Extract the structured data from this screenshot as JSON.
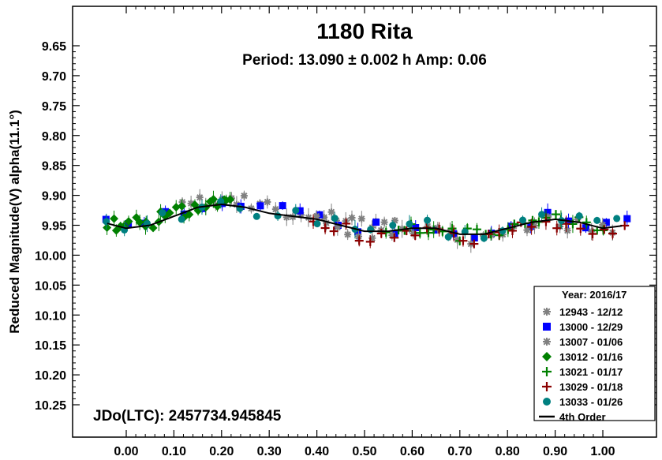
{
  "chart_data": {
    "type": "scatter",
    "title": "1180 Rita",
    "subtitle": "Period: 13.090 ± 0.002 h   Amp: 0.06",
    "ylabel": "Reduced Magnitude(V) alpha(11.1°)",
    "xlabel": "",
    "footer": "JDo(LTC): 2457734.945845",
    "xlim": [
      -0.07,
      1.08
    ],
    "ylim": [
      10.31,
      9.6
    ],
    "y_inverted": true,
    "x_ticks": [
      "0.00",
      "0.10",
      "0.20",
      "0.30",
      "0.40",
      "0.50",
      "0.60",
      "0.70",
      "0.80",
      "0.90",
      "1.00"
    ],
    "y_ticks": [
      "9.65",
      "9.70",
      "9.75",
      "9.80",
      "9.85",
      "9.90",
      "9.95",
      "10.00",
      "10.05",
      "10.10",
      "10.15",
      "10.20",
      "10.25"
    ],
    "legend_title": "Year: 2016/17",
    "legend_placement": "bottom-right",
    "series": [
      {
        "name": "12943 - 12/12",
        "marker": "asterisk",
        "color": "#808080",
        "x_range": [
          0.12,
          0.56
        ],
        "y_center": 9.925,
        "fit": false
      },
      {
        "name": "13000 - 12/29",
        "marker": "square",
        "color": "#0000ff",
        "x_range": [
          -0.04,
          1.05
        ],
        "y_center": 9.935,
        "fit": false
      },
      {
        "name": "13007 - 01/06",
        "marker": "asterisk",
        "color": "#808080",
        "x_range": [
          0.4,
          1.02
        ],
        "y_center": 9.955,
        "fit": false
      },
      {
        "name": "13012 - 01/16",
        "marker": "diamond",
        "color": "#008000",
        "x_range": [
          -0.04,
          0.22
        ],
        "y_center": 9.935,
        "fit": false
      },
      {
        "name": "13021 - 01/17",
        "marker": "plus",
        "color": "#008000",
        "x_range": [
          0.55,
          1.0
        ],
        "y_center": 9.95,
        "fit": false
      },
      {
        "name": "13029 - 01/18",
        "marker": "plus",
        "color": "#8b0000",
        "x_range": [
          0.39,
          1.05
        ],
        "y_center": 9.96,
        "fit": false
      },
      {
        "name": "13033 - 01/26",
        "marker": "circle",
        "color": "#008080",
        "x_range": [
          -0.04,
          1.03
        ],
        "y_center": 9.94,
        "fit": false
      },
      {
        "name": "4th Order",
        "marker": "line",
        "color": "#000000",
        "fit": true
      }
    ],
    "fit_curve": {
      "x": [
        0.0,
        0.05,
        0.1,
        0.15,
        0.2,
        0.25,
        0.3,
        0.35,
        0.4,
        0.45,
        0.5,
        0.55,
        0.6,
        0.65,
        0.7,
        0.75,
        0.8,
        0.85,
        0.9,
        0.95,
        1.0
      ],
      "y": [
        9.955,
        9.95,
        9.935,
        9.92,
        9.915,
        9.92,
        9.93,
        9.935,
        9.94,
        9.95,
        9.96,
        9.96,
        9.955,
        9.955,
        9.965,
        9.965,
        9.955,
        9.945,
        9.94,
        9.945,
        9.955
      ]
    }
  }
}
